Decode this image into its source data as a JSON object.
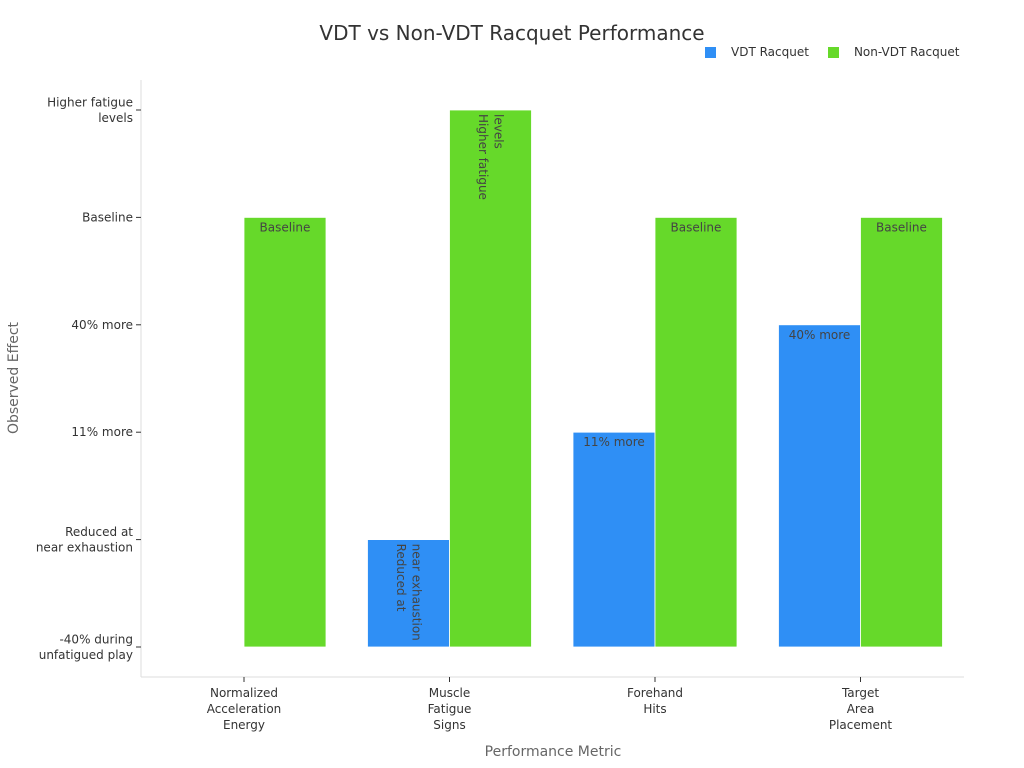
{
  "chart_data": {
    "type": "bar",
    "title": "VDT vs Non-VDT Racquet Performance",
    "xlabel": "Performance Metric",
    "ylabel": "Observed Effect",
    "categories": [
      [
        "Normalized",
        "Acceleration",
        "Energy"
      ],
      [
        "Muscle",
        "Fatigue",
        "Signs"
      ],
      [
        "Forehand",
        "Hits"
      ],
      [
        "Target",
        "Area",
        "Placement"
      ]
    ],
    "y_ticks": [
      [
        "-40% during",
        "unfatigued play"
      ],
      [
        "Reduced at",
        "near exhaustion"
      ],
      [
        "11% more"
      ],
      [
        "40% more"
      ],
      [
        "Baseline"
      ],
      [
        "Higher fatigue",
        "levels"
      ]
    ],
    "ylim": [
      0,
      5
    ],
    "grid": false,
    "legend_position": "top-right",
    "series": [
      {
        "name": "VDT Racquet",
        "color": "#2f8ff5",
        "values": [
          null,
          1,
          2,
          3
        ],
        "labels": [
          null,
          [
            "Reduced at",
            "near exhaustion"
          ],
          [
            "11% more"
          ],
          [
            "40% more"
          ]
        ]
      },
      {
        "name": "Non-VDT Racquet",
        "color": "#66d92a",
        "values": [
          4,
          5,
          4,
          4
        ],
        "labels": [
          [
            "Baseline"
          ],
          [
            "Higher fatigue",
            "levels"
          ],
          [
            "Baseline"
          ],
          [
            "Baseline"
          ]
        ]
      }
    ]
  }
}
